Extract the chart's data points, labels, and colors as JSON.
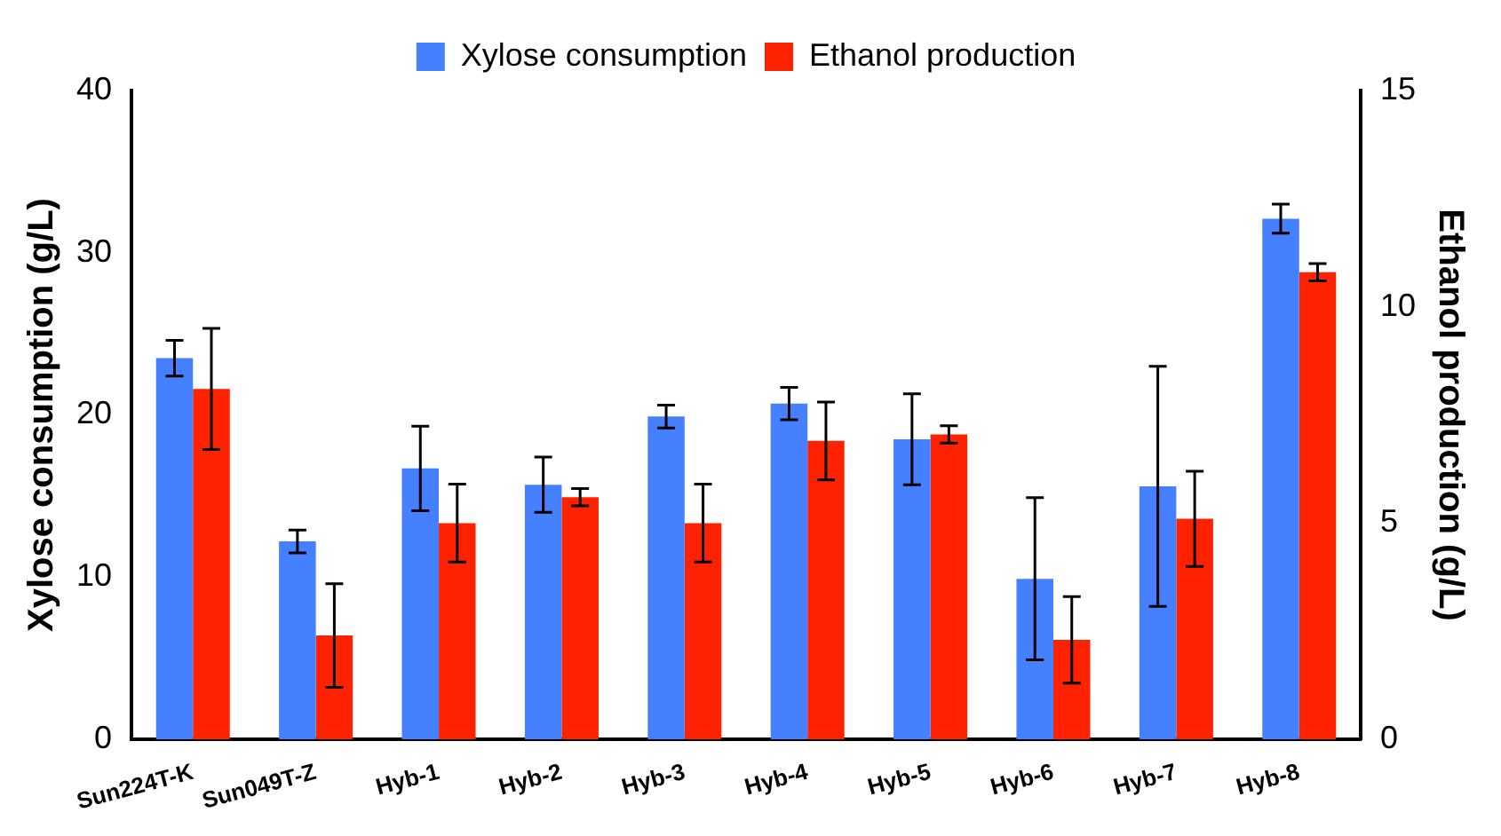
{
  "chart_data": {
    "type": "bar",
    "categories": [
      "Sun224T-K",
      "Sun049T-Z",
      "Hyb-1",
      "Hyb-2",
      "Hyb-3",
      "Hyb-4",
      "Hyb-5",
      "Hyb-6",
      "Hyb-7",
      "Hyb-8"
    ],
    "series": [
      {
        "name": "Xylose consumption",
        "color": "#4480ff",
        "values": [
          23.5,
          12.2,
          16.7,
          15.7,
          19.9,
          20.7,
          18.5,
          9.9,
          15.6,
          32.1
        ],
        "errors": [
          1.1,
          0.7,
          2.6,
          1.7,
          0.7,
          1.0,
          2.8,
          5.0,
          7.4,
          0.9
        ]
      },
      {
        "name": "Ethanol production",
        "color": "#ff2200",
        "axis": "y2",
        "values": [
          8.1,
          2.4,
          5.0,
          5.6,
          5.0,
          6.9,
          7.05,
          2.3,
          5.1,
          10.8
        ],
        "errors": [
          1.4,
          1.2,
          0.9,
          0.2,
          0.9,
          0.9,
          0.2,
          1.0,
          1.1,
          0.2
        ]
      }
    ],
    "ylabel": "Xylose consumption (g/L)",
    "y2label": "Ethanol production (g/L)",
    "ylim": [
      0,
      40
    ],
    "yticks": [
      0,
      10,
      20,
      30,
      40
    ],
    "y2lim": [
      0,
      15
    ],
    "y2ticks": [
      0,
      5,
      10,
      15
    ],
    "grid": false,
    "legend": "top"
  }
}
